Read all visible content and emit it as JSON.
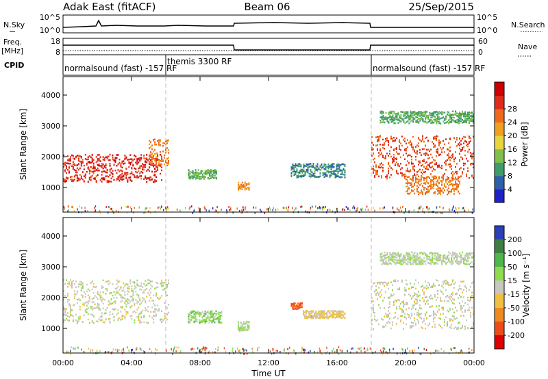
{
  "header": {
    "station": "Adak East (fitACF)",
    "beam": "Beam 06",
    "date": "25/Sep/2015"
  },
  "nsky_panel": {
    "left_label": "N.Sky",
    "right_label": "N.Search",
    "left_ticks": [
      "10^5",
      "10^0"
    ],
    "right_ticks": [
      "10^5",
      "10^0"
    ]
  },
  "freq_panel": {
    "left_label_1": "Freq.",
    "left_label_2": "[MHz]",
    "right_label": "Nave",
    "left_ticks": [
      "18",
      "8"
    ],
    "right_ticks": [
      "60",
      "0"
    ]
  },
  "cpid_panel": {
    "label": "CPID",
    "segments": [
      {
        "text": "normalsound (fast) -157 RF",
        "start_hour": 0,
        "end_hour": 6
      },
      {
        "text": "themis 3300 RF",
        "start_hour": 6,
        "end_hour": 18
      },
      {
        "text": "normalsound (fast) -157 RF",
        "start_hour": 18,
        "end_hour": 24
      }
    ]
  },
  "axes": {
    "xlabel": "Time UT",
    "ylabel": "Slant Range [km]",
    "x_ticks": [
      "00:00",
      "04:00",
      "08:00",
      "12:00",
      "16:00",
      "20:00",
      "00:00"
    ],
    "x_range_hours": [
      0,
      24
    ],
    "y_ticks": [
      "1000",
      "2000",
      "3000",
      "4000"
    ],
    "y_range_km": [
      200,
      4600
    ],
    "mode_change_hours": [
      6,
      18
    ]
  },
  "colors": {
    "power": [
      "#1f1fcc",
      "#2e5faa",
      "#3f9b6a",
      "#7fbf4a",
      "#e8d43c",
      "#f0a020",
      "#ef6a1c",
      "#e02a1a",
      "#cc0000"
    ],
    "velocity": [
      "#2a3fb8",
      "#3f7f3f",
      "#4db84a",
      "#8fdc4f",
      "#c8c8c0",
      "#f0c040",
      "#f08a20",
      "#ef4a1a",
      "#dd0000"
    ]
  },
  "chart_data": [
    {
      "type": "heatmap",
      "name": "power",
      "xlabel": "",
      "ylabel": "Slant Range [km]",
      "colorbar_label": "Power [dB]",
      "colorbar_ticks": [
        "4",
        "8",
        "12",
        "16",
        "20",
        "24",
        "28"
      ],
      "color_range": [
        0,
        32
      ],
      "regions": [
        {
          "t0": 0.0,
          "t1": 5.8,
          "r0": 1200,
          "r1": 2100,
          "value": 27
        },
        {
          "t0": 5.0,
          "t1": 6.2,
          "r0": 1700,
          "r1": 2600,
          "value": 22
        },
        {
          "t0": 7.3,
          "t1": 9.0,
          "r0": 1300,
          "r1": 1600,
          "value": 11
        },
        {
          "t0": 10.2,
          "t1": 10.9,
          "r0": 950,
          "r1": 1200,
          "value": 21
        },
        {
          "t0": 13.3,
          "t1": 16.5,
          "r0": 1350,
          "r1": 1800,
          "value": 8
        },
        {
          "t0": 18.0,
          "t1": 24.0,
          "r0": 1300,
          "r1": 2700,
          "value": 25
        },
        {
          "t0": 20.0,
          "t1": 23.2,
          "r0": 800,
          "r1": 1400,
          "value": 22
        },
        {
          "t0": 18.5,
          "t1": 24.0,
          "r0": 3100,
          "r1": 3500,
          "value": 10
        }
      ]
    },
    {
      "type": "heatmap",
      "name": "velocity",
      "xlabel": "Time UT",
      "ylabel": "Slant Range [km]",
      "colorbar_label": "Velocity [m s⁻¹]",
      "colorbar_ticks": [
        "200",
        "100",
        "50",
        "15",
        "-15",
        "-50",
        "-100",
        "-200"
      ],
      "color_range": [
        -250,
        250
      ],
      "regions": [
        {
          "t0": 0.0,
          "t1": 6.2,
          "r0": 1200,
          "r1": 2600,
          "value": 0
        },
        {
          "t0": 7.3,
          "t1": 9.3,
          "r0": 1200,
          "r1": 1600,
          "value": 60
        },
        {
          "t0": 10.2,
          "t1": 10.9,
          "r0": 950,
          "r1": 1250,
          "value": 40
        },
        {
          "t0": 13.3,
          "t1": 14.0,
          "r0": 1650,
          "r1": 1850,
          "value": -150
        },
        {
          "t0": 14.0,
          "t1": 16.5,
          "r0": 1350,
          "r1": 1600,
          "value": -40
        },
        {
          "t0": 18.0,
          "t1": 24.0,
          "r0": 1000,
          "r1": 2600,
          "value": 0
        },
        {
          "t0": 18.5,
          "t1": 24.0,
          "r0": 3100,
          "r1": 3500,
          "value": 20
        }
      ]
    }
  ]
}
